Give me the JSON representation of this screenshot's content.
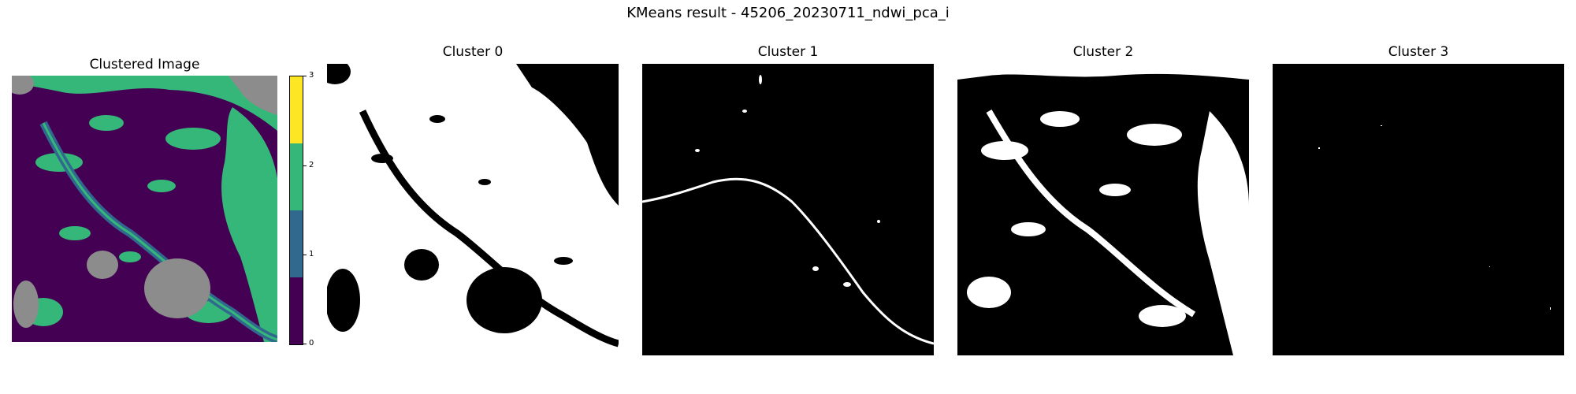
{
  "figure": {
    "suptitle": "KMeans result - 45206_20230711_ndwi_pca_i"
  },
  "panels": {
    "clustered": {
      "title": "Clustered Image"
    },
    "cluster0": {
      "title": "Cluster 0"
    },
    "cluster1": {
      "title": "Cluster 1"
    },
    "cluster2": {
      "title": "Cluster 2"
    },
    "cluster3": {
      "title": "Cluster 3"
    }
  },
  "colorbar": {
    "ticks": [
      "0",
      "1",
      "2",
      "3"
    ],
    "colors": [
      "#440154",
      "#31688e",
      "#35b779",
      "#fde725"
    ]
  },
  "palette": {
    "cluster_0": "#440154",
    "cluster_1": "#31688e",
    "cluster_2": "#35b779",
    "cluster_3_shown": "#8c8c8c",
    "mask_on": "#ffffff",
    "mask_off": "#000000"
  }
}
